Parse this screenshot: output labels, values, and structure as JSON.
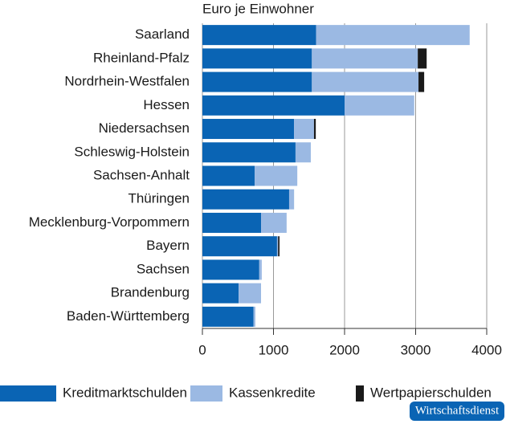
{
  "chart_data": {
    "type": "stacked-bar-horizontal",
    "axis_label": "Euro je Einwohner",
    "categories": [
      "Saarland",
      "Rheinland-Pfalz",
      "Nordrhein-Westfalen",
      "Hessen",
      "Niedersachsen",
      "Schleswig-Holstein",
      "Sachsen-Anhalt",
      "Thüringen",
      "Mecklenburg-Vorpommern",
      "Bayern",
      "Sachsen",
      "Brandenburg",
      "Baden-Württemberg"
    ],
    "series": [
      {
        "name": "Kreditmarktschulden",
        "color": "#0a64b4",
        "values": [
          1600,
          1540,
          1540,
          2000,
          1290,
          1310,
          735,
          1220,
          825,
          1050,
          800,
          510,
          720
        ]
      },
      {
        "name": "Kassenkredite",
        "color": "#9bb9e3",
        "values": [
          2160,
          1490,
          1500,
          980,
          280,
          215,
          600,
          70,
          360,
          15,
          35,
          315,
          25
        ]
      },
      {
        "name": "Wertpapierschulden",
        "color": "#1a1a1a",
        "values": [
          0,
          125,
          80,
          0,
          25,
          0,
          0,
          0,
          0,
          20,
          0,
          0,
          0
        ]
      }
    ],
    "xlim": [
      0,
      4000
    ],
    "xticks": [
      0,
      1000,
      2000,
      3000,
      4000
    ],
    "grid": true,
    "source_logo": "Wirtschaftsdienst"
  }
}
